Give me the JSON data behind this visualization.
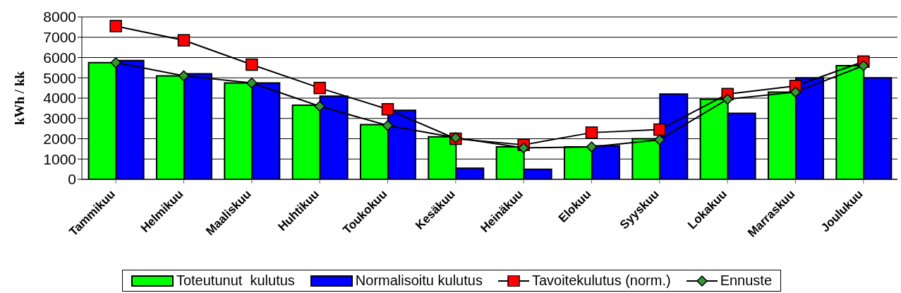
{
  "chart_data": {
    "type": "bar",
    "ylabel": "kWh / kk",
    "categories": [
      "Tammikuu",
      "Helmikuu",
      "Maaliskuu",
      "Huhtikuu",
      "Toukokuu",
      "Kesäkuu",
      "Heinäkuu",
      "Elokuu",
      "Syyskuu",
      "Lokakuu",
      "Marraskuu",
      "Joulukuu"
    ],
    "series": [
      {
        "name": "Toteutunut  kulutus",
        "color": "#00ff00",
        "values": [
          5750,
          5100,
          4750,
          3650,
          2700,
          2100,
          1600,
          1600,
          2000,
          3950,
          4300,
          5600
        ]
      },
      {
        "name": "Normalisoitu kulutus",
        "color": "#0000ff",
        "values": [
          5850,
          5200,
          4750,
          4100,
          3400,
          550,
          500,
          1650,
          4200,
          3250,
          5000,
          5000
        ]
      },
      {
        "name": "Tavoitekulutus (norm.)",
        "type": "line",
        "color": "#ff0000",
        "marker": "square",
        "values": [
          7550,
          6850,
          5650,
          4500,
          3450,
          2000,
          1700,
          2300,
          2450,
          4200,
          4600,
          5800
        ]
      },
      {
        "name": "Ennuste",
        "type": "line",
        "color": "#339933",
        "marker": "diamond",
        "values": [
          5750,
          5100,
          4750,
          3600,
          2650,
          2050,
          1550,
          1600,
          1950,
          3950,
          4300,
          5600
        ]
      }
    ],
    "ylim": [
      0,
      8000
    ],
    "yticks": [
      0,
      1000,
      2000,
      3000,
      4000,
      5000,
      6000,
      7000,
      8000
    ],
    "grid": "y",
    "legend": "bottom"
  }
}
